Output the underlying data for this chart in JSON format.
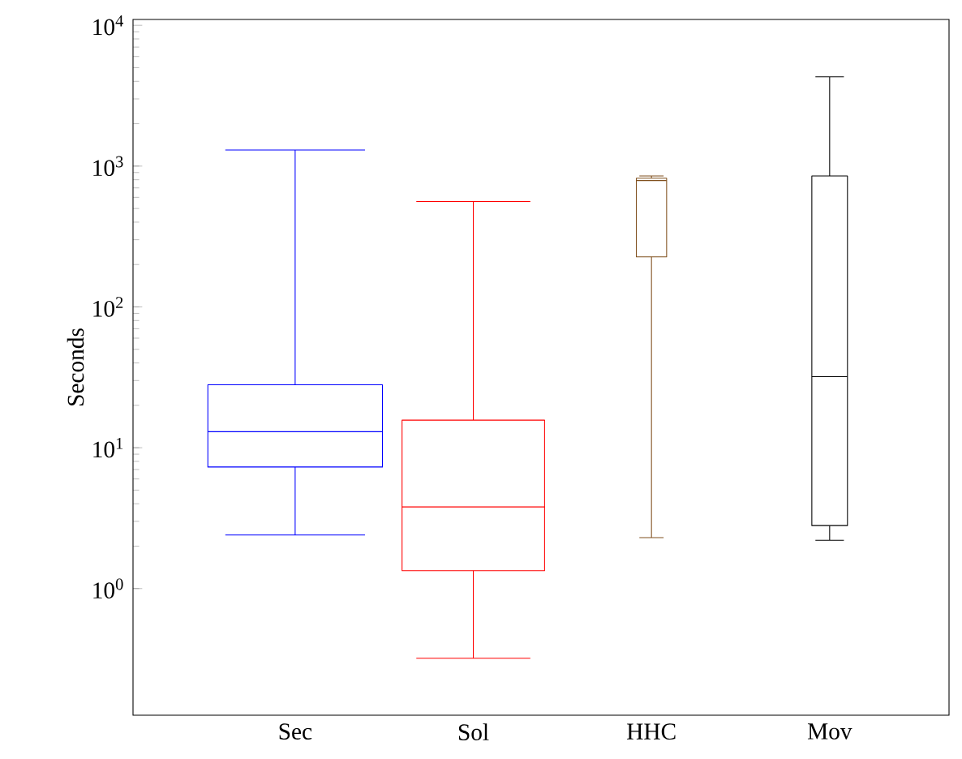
{
  "chart_data": {
    "type": "box",
    "ylabel": "Seconds",
    "log": true,
    "categories": [
      "Sec",
      "Sol",
      "HHC",
      "Mov"
    ],
    "ylim": [
      0.126,
      11000
    ],
    "yticks": [
      {
        "value": 1,
        "label": "10$^{0}$"
      },
      {
        "value": 10,
        "label": "10$^{1}$"
      },
      {
        "value": 100,
        "label": "10$^{2}$"
      },
      {
        "value": 1000,
        "label": "10$^{3}$"
      },
      {
        "value": 10000,
        "label": "10$^{4}$"
      }
    ],
    "colors": [
      "#0000ff",
      "#ff0000",
      "#80501e",
      "#000000"
    ],
    "boxes": [
      {
        "low": 2.4,
        "q1": 7.3,
        "median": 13,
        "q3": 28,
        "high": 1300
      },
      {
        "low": 0.32,
        "q1": 1.34,
        "median": 3.8,
        "q3": 15.7,
        "high": 560
      },
      {
        "low": 2.3,
        "q1": 227,
        "median": 790,
        "q3": 820,
        "high": 850
      },
      {
        "low": 2.2,
        "q1": 2.8,
        "median": 32,
        "q3": 850,
        "high": 4300
      }
    ]
  }
}
